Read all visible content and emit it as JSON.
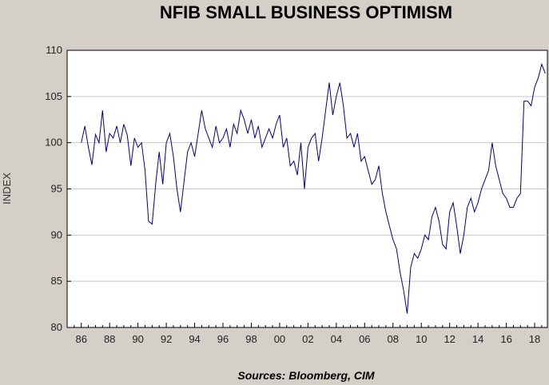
{
  "chart_data": {
    "type": "line",
    "title": "NFIB SMALL BUSINESS OPTIMISM",
    "ylabel": "INDEX",
    "source": "Sources:  Bloomberg, CIM",
    "ylim": [
      80,
      110
    ],
    "yticks": [
      80,
      85,
      90,
      95,
      100,
      105,
      110
    ],
    "xlim": [
      1985.0,
      2018.9
    ],
    "xticks": [
      {
        "x": 1986,
        "label": "86"
      },
      {
        "x": 1988,
        "label": "88"
      },
      {
        "x": 1990,
        "label": "90"
      },
      {
        "x": 1992,
        "label": "92"
      },
      {
        "x": 1994,
        "label": "94"
      },
      {
        "x": 1996,
        "label": "96"
      },
      {
        "x": 1998,
        "label": "98"
      },
      {
        "x": 2000,
        "label": "00"
      },
      {
        "x": 2002,
        "label": "02"
      },
      {
        "x": 2004,
        "label": "04"
      },
      {
        "x": 2006,
        "label": "06"
      },
      {
        "x": 2008,
        "label": "08"
      },
      {
        "x": 2010,
        "label": "10"
      },
      {
        "x": 2012,
        "label": "12"
      },
      {
        "x": 2014,
        "label": "14"
      },
      {
        "x": 2016,
        "label": "16"
      },
      {
        "x": 2018,
        "label": "18"
      }
    ],
    "grid": true,
    "series_color": "#00008b",
    "series": [
      {
        "x": [
          1986.0,
          1986.25,
          1986.5,
          1986.75,
          1987.0,
          1987.25,
          1987.5,
          1987.75,
          1988.0,
          1988.25,
          1988.5,
          1988.75,
          1989.0,
          1989.25,
          1989.5,
          1989.75,
          1990.0,
          1990.25,
          1990.5,
          1990.75,
          1991.0,
          1991.25,
          1991.5,
          1991.75,
          1992.0,
          1992.25,
          1992.5,
          1992.75,
          1993.0,
          1993.25,
          1993.5,
          1993.75,
          1994.0,
          1994.25,
          1994.5,
          1994.75,
          1995.0,
          1995.25,
          1995.5,
          1995.75,
          1996.0,
          1996.25,
          1996.5,
          1996.75,
          1997.0,
          1997.25,
          1997.5,
          1997.75,
          1998.0,
          1998.25,
          1998.5,
          1998.75,
          1999.0,
          1999.25,
          1999.5,
          1999.75,
          2000.0,
          2000.25,
          2000.5,
          2000.75,
          2001.0,
          2001.25,
          2001.5,
          2001.75,
          2002.0,
          2002.25,
          2002.5,
          2002.75,
          2003.0,
          2003.25,
          2003.5,
          2003.75,
          2004.0,
          2004.25,
          2004.5,
          2004.75,
          2005.0,
          2005.25,
          2005.5,
          2005.75,
          2006.0,
          2006.25,
          2006.5,
          2006.75,
          2007.0,
          2007.25,
          2007.5,
          2007.75,
          2008.0,
          2008.25,
          2008.5,
          2008.75,
          2009.0,
          2009.25,
          2009.5,
          2009.75,
          2010.0,
          2010.25,
          2010.5,
          2010.75,
          2011.0,
          2011.25,
          2011.5,
          2011.75,
          2012.0,
          2012.25,
          2012.5,
          2012.75,
          2013.0,
          2013.25,
          2013.5,
          2013.75,
          2014.0,
          2014.25,
          2014.5,
          2014.75,
          2015.0,
          2015.25,
          2015.5,
          2015.75,
          2016.0,
          2016.25,
          2016.5,
          2016.75,
          2017.0,
          2017.25,
          2017.5,
          2017.75,
          2018.0,
          2018.25,
          2018.5,
          2018.75
        ],
        "values": [
          100.0,
          101.8,
          99.5,
          97.6,
          100.9,
          100.0,
          103.5,
          99.0,
          101.0,
          100.5,
          101.8,
          100.0,
          102.0,
          100.8,
          97.5,
          100.5,
          99.5,
          100.0,
          97.0,
          91.5,
          91.2,
          95.5,
          99.0,
          95.5,
          100.0,
          101.0,
          98.5,
          95.0,
          92.5,
          95.8,
          99.0,
          100.0,
          98.5,
          101.0,
          103.5,
          101.5,
          100.5,
          99.5,
          101.8,
          100.0,
          100.5,
          101.5,
          99.5,
          102.0,
          101.0,
          103.5,
          102.5,
          101.0,
          102.5,
          100.5,
          101.8,
          99.5,
          100.5,
          101.5,
          100.5,
          102.0,
          103.0,
          99.5,
          100.5,
          97.5,
          98.0,
          96.5,
          100.0,
          95.0,
          99.5,
          100.5,
          101.0,
          98.0,
          100.5,
          103.5,
          106.5,
          103.0,
          105.0,
          106.5,
          104.0,
          100.5,
          101.0,
          99.5,
          101.0,
          98.0,
          98.5,
          97.0,
          95.5,
          96.0,
          97.5,
          94.5,
          92.5,
          91.0,
          89.5,
          88.5,
          86.0,
          84.0,
          81.5,
          86.5,
          88.0,
          87.5,
          88.5,
          90.0,
          89.5,
          92.0,
          93.0,
          91.5,
          89.0,
          88.5,
          92.5,
          93.5,
          91.0,
          88.0,
          90.0,
          93.0,
          94.0,
          92.5,
          93.5,
          95.0,
          96.0,
          97.0,
          100.0,
          97.5,
          96.0,
          94.5,
          94.0,
          93.0,
          93.0,
          94.0,
          94.5,
          104.5,
          104.5,
          104.0,
          106.0,
          107.0,
          108.5,
          107.5
        ]
      }
    ]
  }
}
